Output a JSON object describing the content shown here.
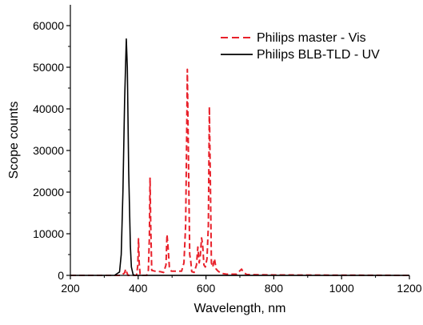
{
  "chart_data": {
    "type": "line",
    "title": "",
    "xlabel": "Wavelength, nm",
    "ylabel": "Scope counts",
    "xlim": [
      200,
      1200
    ],
    "ylim": [
      0,
      65000
    ],
    "xticks": [
      200,
      400,
      600,
      800,
      1000,
      1200
    ],
    "yticks": [
      0,
      10000,
      20000,
      30000,
      40000,
      50000,
      60000
    ],
    "grid": false,
    "legend_position": "top-right",
    "series": [
      {
        "name": "Philips master - Vis",
        "color": "#e8202a",
        "dash": "dashed",
        "points": [
          [
            200,
            0
          ],
          [
            350,
            0
          ],
          [
            360,
            600
          ],
          [
            363,
            1500
          ],
          [
            366,
            800
          ],
          [
            370,
            0
          ],
          [
            395,
            0
          ],
          [
            399,
            2500
          ],
          [
            401,
            8800
          ],
          [
            403,
            3000
          ],
          [
            406,
            0
          ],
          [
            425,
            0
          ],
          [
            430,
            1200
          ],
          [
            433,
            9000
          ],
          [
            435,
            23500
          ],
          [
            437,
            12000
          ],
          [
            440,
            1200
          ],
          [
            450,
            1000
          ],
          [
            465,
            900
          ],
          [
            475,
            700
          ],
          [
            482,
            2500
          ],
          [
            485,
            9800
          ],
          [
            488,
            7000
          ],
          [
            492,
            2000
          ],
          [
            498,
            1000
          ],
          [
            515,
            1000
          ],
          [
            528,
            1000
          ],
          [
            535,
            3000
          ],
          [
            540,
            12000
          ],
          [
            543,
            33000
          ],
          [
            545,
            49500
          ],
          [
            548,
            30000
          ],
          [
            552,
            5000
          ],
          [
            555,
            3500
          ],
          [
            558,
            900
          ],
          [
            565,
            700
          ],
          [
            572,
            2500
          ],
          [
            576,
            6800
          ],
          [
            580,
            3000
          ],
          [
            583,
            4500
          ],
          [
            587,
            9000
          ],
          [
            590,
            7500
          ],
          [
            594,
            2500
          ],
          [
            598,
            2000
          ],
          [
            603,
            4000
          ],
          [
            607,
            12000
          ],
          [
            610,
            40500
          ],
          [
            613,
            22000
          ],
          [
            616,
            3000
          ],
          [
            620,
            2000
          ],
          [
            625,
            4000
          ],
          [
            630,
            1500
          ],
          [
            636,
            1000
          ],
          [
            645,
            500
          ],
          [
            660,
            300
          ],
          [
            690,
            300
          ],
          [
            705,
            1500
          ],
          [
            710,
            800
          ],
          [
            720,
            200
          ],
          [
            800,
            100
          ],
          [
            1000,
            50
          ],
          [
            1200,
            0
          ]
        ]
      },
      {
        "name": "Philips BLB-TLD -  UV",
        "color": "#000000",
        "dash": "solid",
        "points": [
          [
            200,
            0
          ],
          [
            330,
            0
          ],
          [
            345,
            800
          ],
          [
            350,
            5000
          ],
          [
            355,
            20000
          ],
          [
            360,
            42000
          ],
          [
            365,
            56800
          ],
          [
            368,
            50000
          ],
          [
            372,
            25000
          ],
          [
            377,
            7000
          ],
          [
            380,
            2000
          ],
          [
            385,
            200
          ],
          [
            390,
            0
          ],
          [
            1200,
            0
          ]
        ]
      }
    ]
  }
}
